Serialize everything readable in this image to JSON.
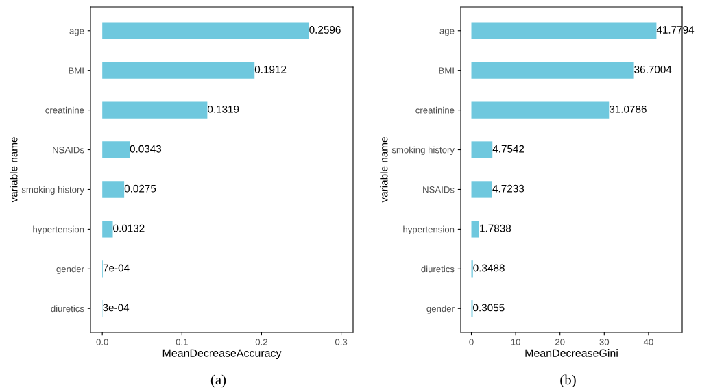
{
  "chart_data": [
    {
      "type": "bar",
      "orientation": "horizontal",
      "categories": [
        "age",
        "BMI",
        "creatinine",
        "NSAIDs",
        "smoking history",
        "hypertension",
        "gender",
        "diuretics"
      ],
      "values": [
        0.2596,
        0.1912,
        0.1319,
        0.0343,
        0.0275,
        0.0132,
        0.0007,
        0.0003
      ],
      "value_labels": [
        "0.2596",
        "0.1912",
        "0.1319",
        "0.0343",
        "0.0275",
        "0.0132",
        "7e-04",
        "3e-04"
      ],
      "color": "#6fc8de",
      "xlabel": "MeanDecreaseAccuracy",
      "ylabel": "variable name",
      "xlim": [
        -0.0148,
        0.315
      ],
      "xticks": [
        {
          "value": 0,
          "label": "0.0"
        },
        0.1,
        0.2,
        0.3
      ],
      "grid": false,
      "legend": false,
      "annotations": [
        "(a)"
      ]
    },
    {
      "type": "bar",
      "orientation": "horizontal",
      "categories": [
        "age",
        "BMI",
        "creatinine",
        "smoking history",
        "NSAIDs",
        "hypertension",
        "diuretics",
        "gender"
      ],
      "values": [
        41.7794,
        36.7004,
        31.0786,
        4.7542,
        4.7233,
        1.7838,
        0.3488,
        0.3055
      ],
      "data_labels": true,
      "color": "#6fc8de",
      "xlabel": "MeanDecreaseGini",
      "ylabel": "variable name",
      "xlim": [
        -2.4,
        47.6
      ],
      "xticks": [
        0,
        10,
        20,
        30,
        40
      ],
      "grid": false,
      "legend": false,
      "annotations": [
        "(b)"
      ]
    }
  ]
}
